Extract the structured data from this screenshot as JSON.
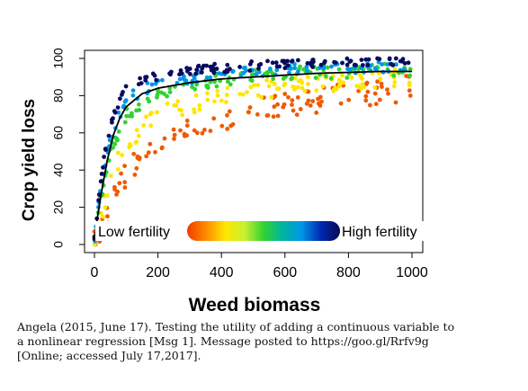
{
  "chart_data": {
    "type": "scatter",
    "xlabel": "Weed biomass",
    "ylabel": "Crop yield loss",
    "xlim": [
      0,
      1000
    ],
    "ylim": [
      0,
      100
    ],
    "xticks": [
      "0",
      "200",
      "400",
      "600",
      "800",
      "1000"
    ],
    "yticks": [
      "0",
      "20",
      "40",
      "60",
      "80",
      "100"
    ],
    "legend": {
      "placement": "bottom-center",
      "low_label": "Low fertility",
      "high_label": "High fertility",
      "gradient_colors": [
        "#f03c00",
        "#ff8c00",
        "#ffe600",
        "#c8f032",
        "#32d232",
        "#00b4a0",
        "#0096e6",
        "#0028b4",
        "#0a0a50"
      ]
    },
    "fitted_curve": {
      "x": [
        0,
        10,
        20,
        40,
        60,
        80,
        100,
        150,
        200,
        300,
        400,
        500,
        600,
        700,
        800,
        900,
        1000
      ],
      "y": [
        2,
        15,
        26,
        45,
        59,
        68,
        74,
        81,
        84,
        87,
        89,
        90,
        91,
        92,
        92.5,
        93,
        93
      ]
    },
    "series_trends": [
      {
        "fertility": "high",
        "color": "#0a0a60",
        "x": [
          0,
          20,
          50,
          100,
          200,
          400,
          600,
          800,
          1000
        ],
        "y": [
          3,
          35,
          65,
          84,
          91,
          95,
          97,
          98,
          99
        ]
      },
      {
        "fertility": "medium-high",
        "color": "#0096e6",
        "x": [
          0,
          20,
          50,
          100,
          200,
          400,
          600,
          800,
          1000
        ],
        "y": [
          2,
          30,
          58,
          78,
          87,
          92,
          94,
          95,
          96
        ]
      },
      {
        "fertility": "medium",
        "color": "#32d232",
        "x": [
          0,
          20,
          50,
          100,
          200,
          400,
          600,
          800,
          1000
        ],
        "y": [
          2,
          24,
          50,
          70,
          82,
          89,
          92,
          93,
          94
        ]
      },
      {
        "fertility": "medium-low",
        "color": "#ffe600",
        "x": [
          0,
          20,
          50,
          100,
          200,
          400,
          600,
          800,
          1000
        ],
        "y": [
          1,
          15,
          35,
          55,
          70,
          80,
          85,
          88,
          90
        ]
      },
      {
        "fertility": "low",
        "color": "#f05a00",
        "x": [
          0,
          20,
          50,
          100,
          200,
          400,
          600,
          800,
          1000
        ],
        "y": [
          1,
          8,
          20,
          38,
          55,
          68,
          75,
          80,
          84
        ]
      }
    ]
  },
  "caption": "Angela (2015, June 17). Testing the utility of adding a continuous variable to\na nonlinear regression [Msg 1]. Message posted to https://goo.gl/Rrfv9g\n[Online; accessed July 17,2017]."
}
